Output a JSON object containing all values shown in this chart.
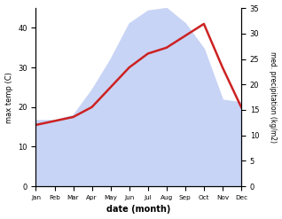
{
  "months": [
    "Jan",
    "Feb",
    "Mar",
    "Apr",
    "May",
    "Jun",
    "Jul",
    "Aug",
    "Sep",
    "Oct",
    "Nov",
    "Dec"
  ],
  "temp": [
    15.5,
    16.5,
    17.5,
    20.0,
    25.0,
    30.0,
    33.5,
    35.0,
    38.0,
    41.0,
    30.0,
    20.0
  ],
  "precip": [
    13.0,
    13.0,
    14.0,
    19.0,
    25.0,
    32.0,
    34.5,
    35.0,
    32.0,
    27.0,
    17.0,
    16.5
  ],
  "temp_color": "#cc2222",
  "precip_fill_color": "#c8d4f5",
  "left_ylim": [
    0,
    45
  ],
  "right_ylim": [
    0,
    35
  ],
  "left_yticks": [
    0,
    10,
    20,
    30,
    40
  ],
  "right_yticks": [
    0,
    5,
    10,
    15,
    20,
    25,
    30,
    35
  ],
  "xlabel": "date (month)",
  "ylabel_left": "max temp (C)",
  "ylabel_right": "med. precipitation (kg/m2)"
}
